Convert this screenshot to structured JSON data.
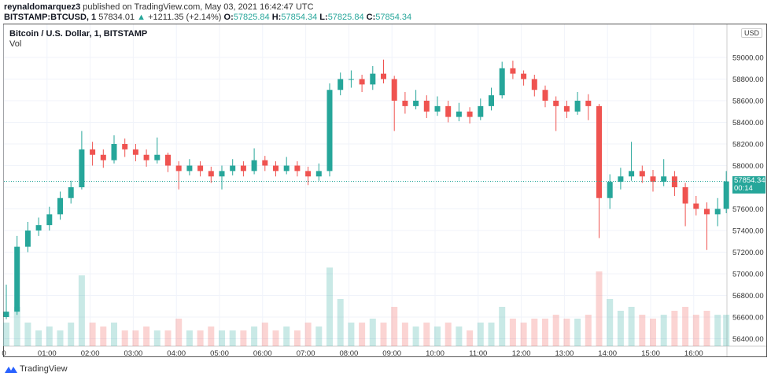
{
  "header": {
    "author": "reynaldomarquez3",
    "published": "published on TradingView.com, May 03, 2021 16:42:47 UTC",
    "symbol": "BITSTAMP:BTCUSD, 1",
    "last": "57834.01",
    "change": "+1211.35 (+2.14%)",
    "o_label": "O:",
    "o": "57825.84",
    "h_label": "H:",
    "h": "57854.34",
    "l_label": "L:",
    "l": "57825.84",
    "c_label": "C:",
    "c": "57854.34"
  },
  "legend": {
    "title": "Bitcoin / U.S. Dollar, 1, BITSTAMP",
    "vol": "Vol"
  },
  "axis_currency": "USD",
  "price_tag": {
    "price": "57854.34",
    "countdown": "00:14"
  },
  "branding": "TradingView",
  "colors": {
    "up": "#26a69a",
    "down": "#ef5350",
    "tag": "#26a69a"
  },
  "chart_data": {
    "type": "candlestick",
    "title": "Bitcoin / U.S. Dollar, 1, BITSTAMP",
    "ylim": [
      56300,
      59200
    ],
    "y_ticks": [
      "59000.00",
      "58800.00",
      "58600.00",
      "58400.00",
      "58200.00",
      "58000.00",
      "57800.00",
      "57600.00",
      "57400.00",
      "57200.00",
      "57000.00",
      "56800.00",
      "56600.00",
      "56400.00"
    ],
    "x_ticks": [
      "0",
      "01:00",
      "02:00",
      "03:00",
      "04:00",
      "05:00",
      "06:00",
      "07:00",
      "08:00",
      "09:00",
      "10:00",
      "11:00",
      "12:00",
      "13:00",
      "14:00",
      "15:00",
      "16:00"
    ],
    "last_price": 57854.34,
    "candles": [
      [
        "00:00",
        56600,
        56900,
        56580,
        56650
      ],
      [
        "00:15",
        56650,
        57350,
        56620,
        57250
      ],
      [
        "00:30",
        57250,
        57480,
        57200,
        57400
      ],
      [
        "00:45",
        57400,
        57520,
        57350,
        57450
      ],
      [
        "01:00",
        57450,
        57620,
        57400,
        57550
      ],
      [
        "01:15",
        57550,
        57760,
        57500,
        57700
      ],
      [
        "01:30",
        57700,
        57860,
        57650,
        57800
      ],
      [
        "01:45",
        57800,
        58320,
        57780,
        58150
      ],
      [
        "02:00",
        58150,
        58220,
        58000,
        58100
      ],
      [
        "02:15",
        58100,
        58150,
        57980,
        58050
      ],
      [
        "02:30",
        58050,
        58280,
        58020,
        58200
      ],
      [
        "02:45",
        58200,
        58250,
        58080,
        58150
      ],
      [
        "03:00",
        58150,
        58200,
        58040,
        58100
      ],
      [
        "03:15",
        58100,
        58150,
        57990,
        58050
      ],
      [
        "03:30",
        58050,
        58260,
        58020,
        58100
      ],
      [
        "03:45",
        58100,
        58120,
        57940,
        58000
      ],
      [
        "04:00",
        58000,
        58040,
        57780,
        57950
      ],
      [
        "04:15",
        57950,
        58060,
        57910,
        58000
      ],
      [
        "04:30",
        58000,
        58040,
        57900,
        57950
      ],
      [
        "04:45",
        57950,
        57990,
        57840,
        57900
      ],
      [
        "05:00",
        57900,
        58000,
        57780,
        57950
      ],
      [
        "05:15",
        57950,
        58060,
        57910,
        58000
      ],
      [
        "05:30",
        58000,
        58040,
        57900,
        57950
      ],
      [
        "05:45",
        57950,
        58160,
        57920,
        58050
      ],
      [
        "06:00",
        58050,
        58090,
        57950,
        58000
      ],
      [
        "06:15",
        58000,
        58040,
        57900,
        57950
      ],
      [
        "06:30",
        57950,
        58080,
        57920,
        58000
      ],
      [
        "06:45",
        58000,
        58040,
        57900,
        57950
      ],
      [
        "07:00",
        57950,
        57990,
        57820,
        57900
      ],
      [
        "07:15",
        57900,
        58020,
        57860,
        57950
      ],
      [
        "07:30",
        57950,
        58760,
        57900,
        58700
      ],
      [
        "07:45",
        58700,
        58860,
        58650,
        58800
      ],
      [
        "08:00",
        58800,
        58880,
        58720,
        58800
      ],
      [
        "08:15",
        58800,
        58840,
        58680,
        58750
      ],
      [
        "08:30",
        58750,
        58920,
        58700,
        58850
      ],
      [
        "08:45",
        58850,
        58980,
        58760,
        58800
      ],
      [
        "09:00",
        58800,
        58830,
        58320,
        58600
      ],
      [
        "09:15",
        58600,
        58680,
        58480,
        58550
      ],
      [
        "09:30",
        58550,
        58700,
        58520,
        58600
      ],
      [
        "09:45",
        58600,
        58650,
        58440,
        58500
      ],
      [
        "10:00",
        58500,
        58640,
        58460,
        58550
      ],
      [
        "10:15",
        58550,
        58600,
        58400,
        58450
      ],
      [
        "10:30",
        58450,
        58580,
        58410,
        58500
      ],
      [
        "10:45",
        58500,
        58540,
        58390,
        58450
      ],
      [
        "11:00",
        58450,
        58620,
        58420,
        58550
      ],
      [
        "11:15",
        58550,
        58720,
        58510,
        58650
      ],
      [
        "11:30",
        58650,
        58960,
        58620,
        58900
      ],
      [
        "11:45",
        58900,
        58970,
        58800,
        58850
      ],
      [
        "12:00",
        58850,
        58880,
        58740,
        58800
      ],
      [
        "12:15",
        58800,
        58840,
        58640,
        58700
      ],
      [
        "12:30",
        58700,
        58740,
        58540,
        58600
      ],
      [
        "12:45",
        58600,
        58640,
        58320,
        58550
      ],
      [
        "13:00",
        58550,
        58600,
        58440,
        58500
      ],
      [
        "13:15",
        58500,
        58680,
        58470,
        58600
      ],
      [
        "13:30",
        58600,
        58660,
        58420,
        58550
      ],
      [
        "13:45",
        58550,
        58570,
        57330,
        57700
      ],
      [
        "14:00",
        57700,
        57920,
        57600,
        57850
      ],
      [
        "14:15",
        57850,
        57980,
        57780,
        57900
      ],
      [
        "14:30",
        57900,
        58220,
        57860,
        57950
      ],
      [
        "14:45",
        57950,
        58000,
        57840,
        57900
      ],
      [
        "15:00",
        57900,
        57960,
        57760,
        57850
      ],
      [
        "15:15",
        57850,
        58060,
        57810,
        57900
      ],
      [
        "15:30",
        57900,
        57950,
        57720,
        57800
      ],
      [
        "15:45",
        57800,
        57840,
        57440,
        57650
      ],
      [
        "16:00",
        57650,
        57720,
        57540,
        57600
      ],
      [
        "16:15",
        57600,
        57660,
        57220,
        57550
      ],
      [
        "16:30",
        57550,
        57700,
        57440,
        57600
      ],
      [
        "16:42",
        57600,
        57950,
        57560,
        57854.34
      ]
    ],
    "volume": [
      0.3,
      0.5,
      0.3,
      0.2,
      0.25,
      0.2,
      0.3,
      0.9,
      0.3,
      0.25,
      0.3,
      0.2,
      0.2,
      0.25,
      0.2,
      0.2,
      0.35,
      0.2,
      0.2,
      0.25,
      0.2,
      0.2,
      0.2,
      0.25,
      0.3,
      0.2,
      0.25,
      0.2,
      0.3,
      0.25,
      1.0,
      0.6,
      0.3,
      0.3,
      0.35,
      0.3,
      0.5,
      0.3,
      0.25,
      0.3,
      0.25,
      0.3,
      0.25,
      0.2,
      0.3,
      0.3,
      0.5,
      0.35,
      0.3,
      0.35,
      0.35,
      0.4,
      0.35,
      0.35,
      0.4,
      0.95,
      0.6,
      0.45,
      0.5,
      0.4,
      0.35,
      0.4,
      0.45,
      0.5,
      0.4,
      0.45,
      0.4,
      0.4
    ]
  }
}
